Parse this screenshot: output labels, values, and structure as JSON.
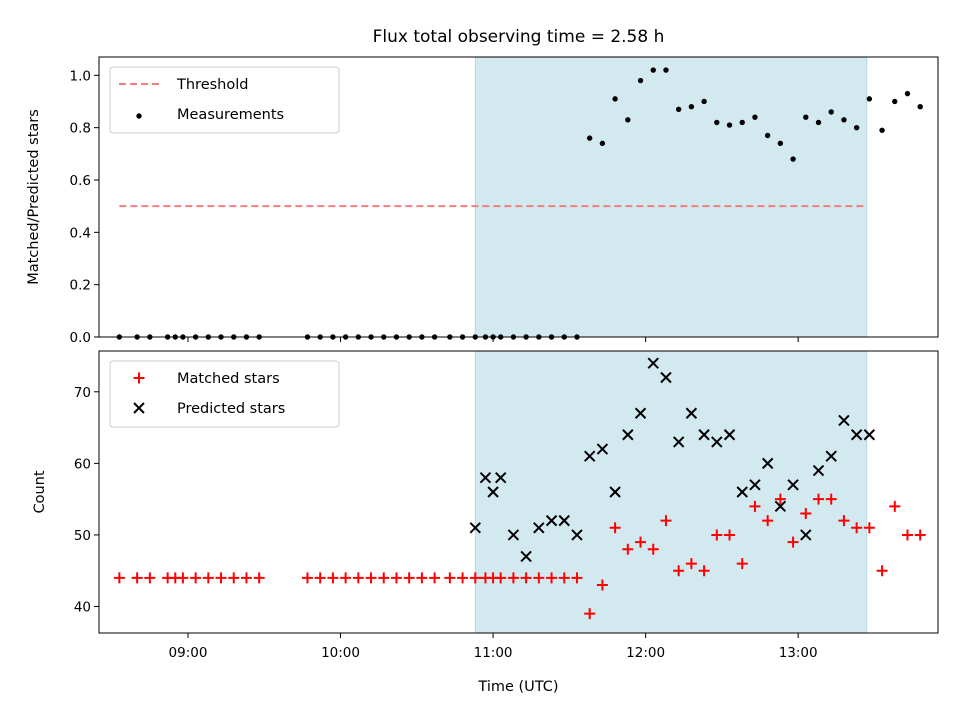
{
  "chart_data": [
    {
      "type": "scatter",
      "title": "Flux total observing time = 2.58 h",
      "xlabel": "",
      "ylabel": "Matched/Predicted stars",
      "xlim": [
        "08:25",
        "13:55"
      ],
      "ylim": [
        0,
        1.07
      ],
      "yticks": [
        0.0,
        0.2,
        0.4,
        0.6,
        0.8,
        1.0
      ],
      "ytick_labels": [
        "0.0",
        "0.2",
        "0.4",
        "0.6",
        "0.8",
        "1.0"
      ],
      "xticks": [
        "09:00",
        "10:00",
        "11:00",
        "12:00",
        "13:00"
      ],
      "shaded_region": {
        "start": "10:53",
        "end": "13:27",
        "color": "#d3e9f0"
      },
      "legend_position": "upper-left",
      "series": [
        {
          "name": "Threshold",
          "kind": "line",
          "style": "dashed",
          "color": "#f08080",
          "x": [
            "08:33",
            "13:27"
          ],
          "y": [
            0.5,
            0.5
          ]
        },
        {
          "name": "Measurements",
          "kind": "scatter",
          "marker": "dot",
          "color": "#000000",
          "x": [
            "08:33",
            "08:40",
            "08:45",
            "08:52",
            "08:55",
            "08:58",
            "09:03",
            "09:08",
            "09:13",
            "09:18",
            "09:23",
            "09:28",
            "09:47",
            "09:52",
            "09:57",
            "10:02",
            "10:07",
            "10:12",
            "10:17",
            "10:22",
            "10:27",
            "10:32",
            "10:37",
            "10:43",
            "10:48",
            "10:53",
            "10:57",
            "11:00",
            "11:03",
            "11:08",
            "11:13",
            "11:18",
            "11:23",
            "11:28",
            "11:33",
            "11:38",
            "11:43",
            "11:48",
            "11:53",
            "11:58",
            "12:03",
            "12:08",
            "12:13",
            "12:18",
            "12:23",
            "12:28",
            "12:33",
            "12:38",
            "12:43",
            "12:48",
            "12:53",
            "12:58",
            "13:03",
            "13:08",
            "13:13",
            "13:18",
            "13:23",
            "13:28",
            "13:33",
            "13:38",
            "13:43",
            "13:48"
          ],
          "y": [
            0,
            0,
            0,
            0,
            0,
            0,
            0,
            0,
            0,
            0,
            0,
            0,
            0,
            0,
            0,
            0,
            0,
            0,
            0,
            0,
            0,
            0,
            0,
            0,
            0,
            0,
            0,
            0,
            0,
            0,
            0,
            0,
            0,
            0,
            0,
            0.76,
            0.74,
            0.91,
            0.83,
            0.98,
            1.02,
            1.02,
            0.87,
            0.88,
            0.9,
            0.82,
            0.81,
            0.82,
            0.84,
            0.77,
            0.74,
            0.68,
            0.84,
            0.82,
            0.86,
            0.83,
            0.8,
            0.91,
            0.79,
            0.9,
            0.93,
            0.88
          ]
        }
      ]
    },
    {
      "type": "scatter",
      "xlabel": "Time (UTC)",
      "ylabel": "Count",
      "xlim": [
        "08:25",
        "13:55"
      ],
      "ylim": [
        36.3,
        75.7
      ],
      "yticks": [
        40,
        50,
        60,
        70
      ],
      "ytick_labels": [
        "40",
        "50",
        "60",
        "70"
      ],
      "xticks": [
        "09:00",
        "10:00",
        "11:00",
        "12:00",
        "13:00"
      ],
      "xtick_labels": [
        "09:00",
        "10:00",
        "11:00",
        "12:00",
        "13:00"
      ],
      "shaded_region": {
        "start": "10:53",
        "end": "13:27",
        "color": "#d3e9f0"
      },
      "legend_position": "upper-left",
      "series": [
        {
          "name": "Matched stars",
          "marker": "plus",
          "color": "#ff0000",
          "x": [
            "08:33",
            "08:40",
            "08:45",
            "08:52",
            "08:55",
            "08:58",
            "09:03",
            "09:08",
            "09:13",
            "09:18",
            "09:23",
            "09:28",
            "09:47",
            "09:52",
            "09:57",
            "10:02",
            "10:07",
            "10:12",
            "10:17",
            "10:22",
            "10:27",
            "10:32",
            "10:37",
            "10:43",
            "10:48",
            "10:53",
            "10:57",
            "11:00",
            "11:03",
            "11:08",
            "11:13",
            "11:18",
            "11:23",
            "11:28",
            "11:33",
            "11:38",
            "11:43",
            "11:48",
            "11:53",
            "11:58",
            "12:03",
            "12:08",
            "12:13",
            "12:18",
            "12:23",
            "12:28",
            "12:33",
            "12:38",
            "12:43",
            "12:48",
            "12:53",
            "12:58",
            "13:03",
            "13:08",
            "13:13",
            "13:18",
            "13:23",
            "13:28",
            "13:33",
            "13:38",
            "13:43",
            "13:48"
          ],
          "y": [
            44,
            44,
            44,
            44,
            44,
            44,
            44,
            44,
            44,
            44,
            44,
            44,
            44,
            44,
            44,
            44,
            44,
            44,
            44,
            44,
            44,
            44,
            44,
            44,
            44,
            44,
            44,
            44,
            44,
            44,
            44,
            44,
            44,
            44,
            44,
            39,
            43,
            51,
            48,
            49,
            48,
            52,
            45,
            46,
            45,
            50,
            50,
            46,
            54,
            52,
            55,
            49,
            53,
            55,
            55,
            52,
            51,
            51,
            45,
            54,
            50,
            50
          ]
        },
        {
          "name": "Predicted stars",
          "marker": "x",
          "color": "#000000",
          "x": [
            "10:53",
            "10:57",
            "11:00",
            "11:03",
            "11:08",
            "11:13",
            "11:18",
            "11:23",
            "11:28",
            "11:33",
            "11:38",
            "11:43",
            "11:48",
            "11:53",
            "11:58",
            "12:03",
            "12:08",
            "12:13",
            "12:18",
            "12:23",
            "12:28",
            "12:33",
            "12:38",
            "12:43",
            "12:48",
            "12:53",
            "12:58",
            "13:03",
            "13:08",
            "13:13",
            "13:18",
            "13:23",
            "13:28"
          ],
          "y": [
            51,
            58,
            56,
            58,
            50,
            47,
            51,
            52,
            52,
            50,
            61,
            62,
            56,
            64,
            67,
            74,
            72,
            63,
            67,
            64,
            63,
            64,
            56,
            57,
            60,
            54,
            57,
            50,
            59,
            61,
            66,
            64,
            64
          ]
        }
      ]
    }
  ]
}
